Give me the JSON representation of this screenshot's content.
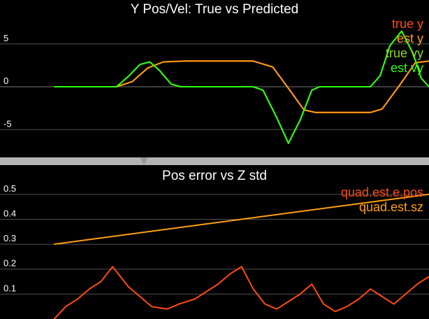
{
  "colors": {
    "background": "#000000",
    "divider": "#b4b4b4",
    "grid": "#505050",
    "axis_text": "#ffffff",
    "true_y": "#ff4a10",
    "est_y": "#ffa010",
    "true_vy": "#8cd628",
    "est_vy": "#2cff10",
    "e_pos": "#ff4a10",
    "sz": "#ffa010"
  },
  "chart_data": [
    {
      "type": "line",
      "title": "Y Pos/Vel: True vs Predicted",
      "xlabel": "",
      "ylabel": "",
      "xlim": [
        0,
        20
      ],
      "ylim": [
        -8,
        8
      ],
      "yticks": [
        -5,
        0,
        5
      ],
      "ytick_labels": [
        "-5",
        "0",
        "5"
      ],
      "grid": "horizontal",
      "legend_position": "top-right",
      "series": [
        {
          "name": "true y",
          "color": "#ff4a10",
          "x": [
            0.8,
            4.0,
            4.8,
            5.6,
            6.4,
            7.5,
            11.0,
            12.0,
            12.9,
            13.6,
            14.2,
            17.0,
            17.6,
            18.5,
            19.3,
            20.0
          ],
          "y": [
            0,
            0,
            0.6,
            2.2,
            2.9,
            3.0,
            3.0,
            2.3,
            -0.5,
            -2.7,
            -3.0,
            -3.0,
            -2.6,
            0.2,
            2.8,
            3.0
          ]
        },
        {
          "name": "est y",
          "color": "#ffa010",
          "x": [
            0.8,
            4.0,
            4.8,
            5.6,
            6.4,
            7.5,
            11.0,
            12.0,
            12.9,
            13.6,
            14.2,
            17.0,
            17.6,
            18.5,
            19.3,
            20.0
          ],
          "y": [
            0,
            0,
            0.6,
            2.2,
            2.9,
            3.0,
            3.0,
            2.3,
            -0.5,
            -2.7,
            -3.0,
            -3.0,
            -2.6,
            0.2,
            2.8,
            3.0
          ]
        },
        {
          "name": "true vy",
          "color": "#8cd628",
          "x": [
            0.8,
            4.0,
            4.6,
            5.2,
            5.7,
            6.2,
            6.8,
            7.3,
            11.0,
            11.5,
            12.2,
            12.8,
            13.4,
            14.0,
            14.4,
            17.0,
            17.5,
            18.0,
            18.6,
            19.2,
            19.6,
            20.0
          ],
          "y": [
            0,
            0,
            1.2,
            2.6,
            2.9,
            1.9,
            0.3,
            0,
            0,
            -0.4,
            -3.6,
            -6.6,
            -3.9,
            -0.4,
            0,
            0,
            1.3,
            4.8,
            6.5,
            3.8,
            1.0,
            0
          ]
        },
        {
          "name": "est vy",
          "color": "#2cff10",
          "x": [
            0.8,
            4.0,
            4.6,
            5.2,
            5.7,
            6.2,
            6.8,
            7.3,
            11.0,
            11.5,
            12.2,
            12.8,
            13.4,
            14.0,
            14.4,
            17.0,
            17.5,
            18.0,
            18.6,
            19.2,
            19.6,
            20.0
          ],
          "y": [
            0,
            0,
            1.2,
            2.6,
            2.9,
            1.9,
            0.3,
            0,
            0,
            -0.4,
            -3.6,
            -6.6,
            -3.9,
            -0.4,
            0,
            0,
            1.3,
            4.8,
            6.5,
            3.8,
            1.0,
            0
          ]
        }
      ]
    },
    {
      "type": "line",
      "title": "Pos error vs Z std",
      "xlabel": "",
      "ylabel": "",
      "xlim": [
        0,
        20
      ],
      "ylim": [
        0,
        0.55
      ],
      "yticks": [
        0.1,
        0.2,
        0.3,
        0.4,
        0.5
      ],
      "ytick_labels": [
        "0.1",
        "0.2",
        "0.3",
        "0.4",
        "0.5"
      ],
      "grid": "horizontal",
      "legend_position": "top-right",
      "series": [
        {
          "name": "quad.est.e.pos",
          "color": "#ff4a10",
          "x": [
            0.8,
            1.4,
            2.0,
            2.6,
            3.2,
            3.8,
            4.6,
            5.2,
            5.8,
            6.6,
            7.2,
            8.0,
            8.6,
            9.2,
            9.8,
            10.4,
            11.0,
            11.6,
            12.2,
            12.8,
            13.4,
            14.0,
            14.6,
            15.2,
            15.8,
            16.4,
            17.0,
            17.6,
            18.2,
            18.8,
            19.4,
            20.0
          ],
          "y": [
            0.0,
            0.05,
            0.08,
            0.12,
            0.15,
            0.21,
            0.13,
            0.09,
            0.05,
            0.04,
            0.06,
            0.08,
            0.11,
            0.14,
            0.18,
            0.21,
            0.12,
            0.06,
            0.04,
            0.07,
            0.1,
            0.14,
            0.06,
            0.03,
            0.05,
            0.08,
            0.12,
            0.09,
            0.06,
            0.1,
            0.14,
            0.17
          ]
        },
        {
          "name": "quad.est.sz",
          "color": "#ffa010",
          "x": [
            0.8,
            20.0
          ],
          "y": [
            0.3,
            0.5
          ]
        }
      ]
    }
  ]
}
